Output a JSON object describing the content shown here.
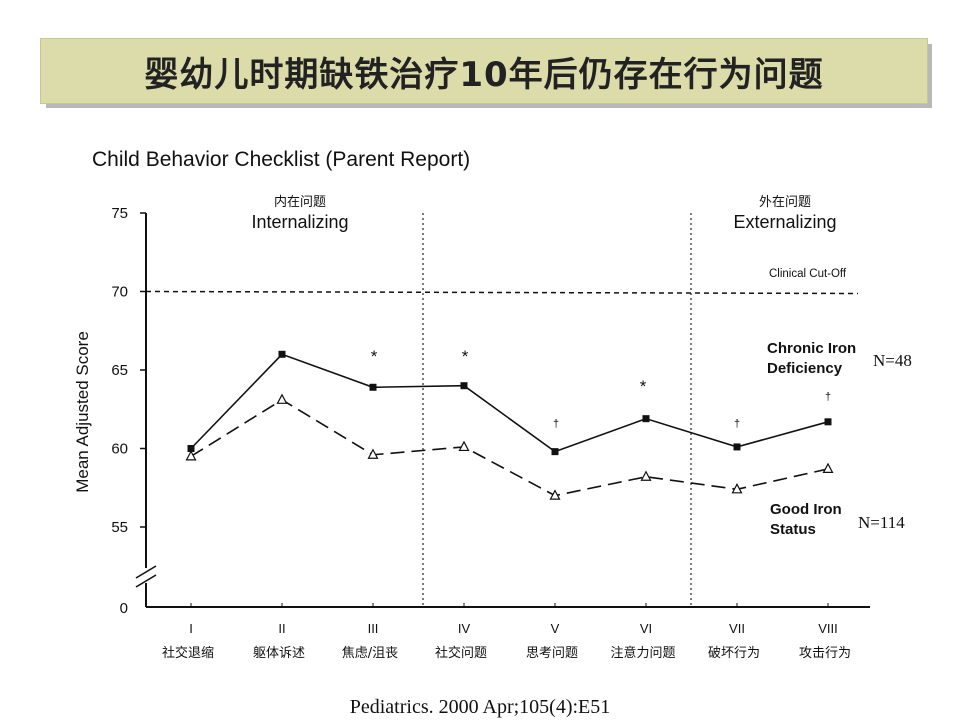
{
  "slide": {
    "title": "婴幼儿时期缺铁治疗10年后仍存在行为问题",
    "citation": "Pediatrics. 2000 Apr;105(4):E51"
  },
  "chart_data": {
    "type": "line",
    "title": "Child Behavior Checklist (Parent Report)",
    "ylabel": "Mean Adjusted Score",
    "xlabel": "",
    "ylim": [
      55,
      75
    ],
    "y_axis_break": true,
    "y_ticks": [
      "0",
      "55",
      "60",
      "65",
      "70",
      "75"
    ],
    "categories": [
      "I",
      "II",
      "III",
      "IV",
      "V",
      "VI",
      "VII",
      "VIII"
    ],
    "category_labels_cn": [
      "社交退缩",
      "躯体诉述",
      "焦虑/沮丧",
      "社交问题",
      "思考问题",
      "注意力问题",
      "破坏行为",
      "攻击行为"
    ],
    "series": [
      {
        "name_lines": [
          "Chronic Iron",
          "Deficiency"
        ],
        "n_label": "N=48",
        "style": "solid",
        "marker": "filled-square",
        "values": [
          60.0,
          66.0,
          63.9,
          64.0,
          59.8,
          61.9,
          60.1,
          61.7
        ]
      },
      {
        "name_lines": [
          "Good Iron",
          "Status"
        ],
        "n_label": "N=114",
        "style": "dashed",
        "marker": "open-triangle",
        "values": [
          59.5,
          63.1,
          59.6,
          60.1,
          57.0,
          58.2,
          57.4,
          58.7
        ]
      }
    ],
    "reference_line": {
      "value": 70,
      "label": "Clinical Cut-Off"
    },
    "groups": [
      {
        "label_cn": "内在问题",
        "label": "Internalizing"
      },
      {
        "label_cn": "外在问题",
        "label": "Externalizing"
      }
    ],
    "group_dividers_after": [
      4,
      6
    ],
    "significance": [
      {
        "category": "III",
        "mark": "*"
      },
      {
        "category": "IV",
        "mark": "*"
      },
      {
        "category": "V",
        "mark": "†"
      },
      {
        "category": "VI",
        "mark": "*"
      },
      {
        "category": "VII",
        "mark": "†"
      },
      {
        "category": "VIII",
        "mark": "†"
      }
    ]
  }
}
